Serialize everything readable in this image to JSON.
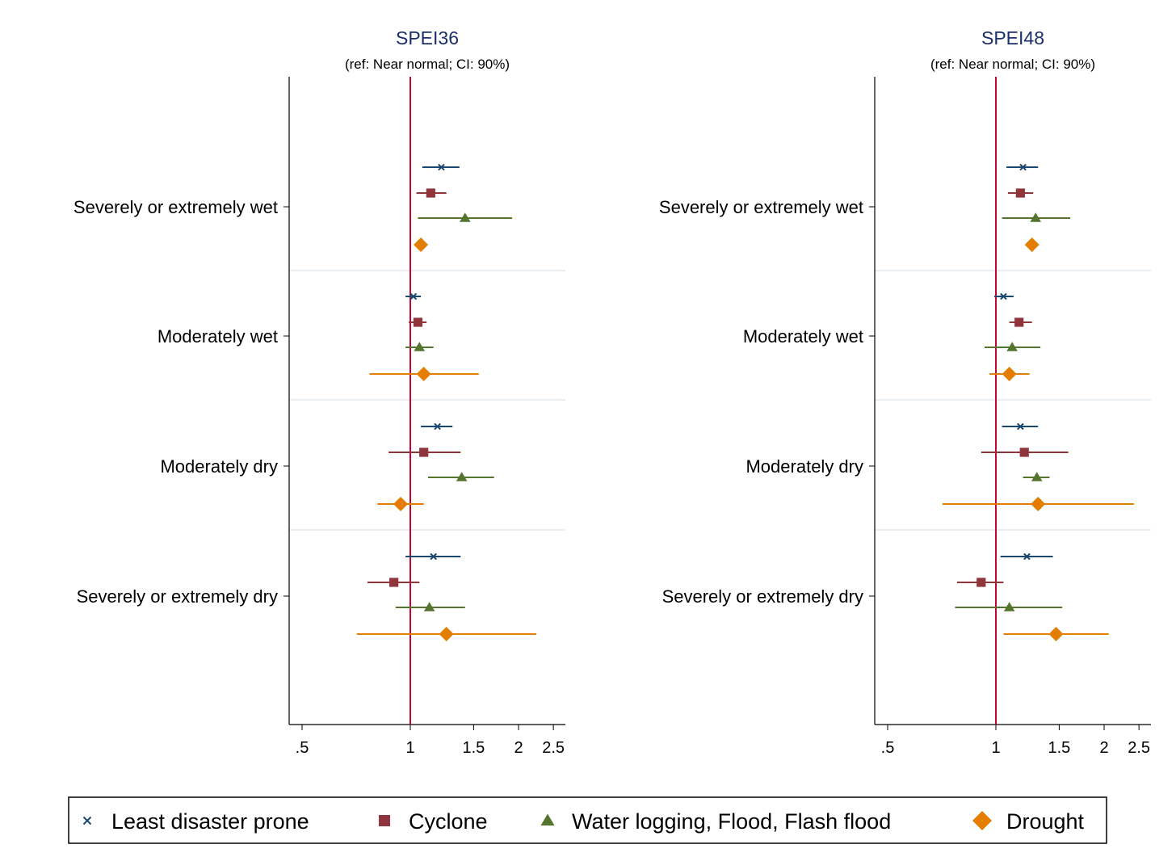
{
  "chart_data": {
    "type": "scatter",
    "subtype": "coefficient-plot-with-ci",
    "x_scale": "log",
    "xlim": [
      0.46,
      2.7
    ],
    "x_ticks": [
      0.5,
      1,
      1.5,
      2,
      2.5
    ],
    "x_tick_labels": [
      ".5",
      "1",
      "1.5",
      "2",
      "2.5"
    ],
    "reference_line": 1,
    "categories": [
      "Severely or extremely wet",
      "Moderately wet",
      "Moderately dry",
      "Severely or extremely dry"
    ],
    "legend": {
      "placement": "bottom",
      "entries": [
        "Least disaster prone",
        "Cyclone",
        "Water logging, Flood, Flash flood",
        "Drought"
      ]
    },
    "series_style": [
      {
        "marker": "x",
        "color": "#1a476f"
      },
      {
        "marker": "square",
        "color": "#90353b"
      },
      {
        "marker": "triangle",
        "color": "#55752f"
      },
      {
        "marker": "diamond",
        "color": "#e37e00"
      }
    ],
    "ref_color": "#c10534",
    "panels": [
      {
        "title": "SPEI36",
        "subtitle": "(ref: Near normal; CI: 90%)",
        "series": [
          {
            "name": "Least disaster prone",
            "values": [
              1.22,
              1.02,
              1.19,
              1.16
            ],
            "lo": [
              1.08,
              0.97,
              1.07,
              0.97
            ],
            "hi": [
              1.37,
              1.07,
              1.31,
              1.38
            ]
          },
          {
            "name": "Cyclone",
            "values": [
              1.14,
              1.05,
              1.09,
              0.9
            ],
            "lo": [
              1.04,
              0.99,
              0.87,
              0.76
            ],
            "hi": [
              1.26,
              1.11,
              1.38,
              1.06
            ]
          },
          {
            "name": "Water logging, Flood, Flash flood",
            "values": [
              1.42,
              1.06,
              1.39,
              1.13
            ],
            "lo": [
              1.05,
              0.97,
              1.12,
              0.91
            ],
            "hi": [
              1.92,
              1.16,
              1.71,
              1.42
            ]
          },
          {
            "name": "Drought",
            "values": [
              1.07,
              1.09,
              0.94,
              1.26
            ],
            "lo": [
              1.07,
              0.77,
              0.81,
              0.71
            ],
            "hi": [
              1.07,
              1.55,
              1.09,
              2.24
            ]
          }
        ]
      },
      {
        "title": "SPEI48",
        "subtitle": "(ref: Near normal; CI: 90%)",
        "series": [
          {
            "name": "Least disaster prone",
            "values": [
              1.19,
              1.05,
              1.17,
              1.22
            ],
            "lo": [
              1.07,
              0.99,
              1.04,
              1.03
            ],
            "hi": [
              1.31,
              1.12,
              1.31,
              1.44
            ]
          },
          {
            "name": "Cyclone",
            "values": [
              1.17,
              1.16,
              1.2,
              0.91
            ],
            "lo": [
              1.08,
              1.09,
              0.91,
              0.78
            ],
            "hi": [
              1.27,
              1.26,
              1.59,
              1.05
            ]
          },
          {
            "name": "Water logging, Flood, Flash flood",
            "values": [
              1.29,
              1.11,
              1.3,
              1.09
            ],
            "lo": [
              1.04,
              0.93,
              1.19,
              0.77
            ],
            "hi": [
              1.61,
              1.33,
              1.41,
              1.53
            ]
          },
          {
            "name": "Drought",
            "values": [
              1.26,
              1.09,
              1.31,
              1.47
            ],
            "lo": [
              1.26,
              0.96,
              0.71,
              1.05
            ],
            "hi": [
              1.26,
              1.24,
              2.42,
              2.06
            ]
          }
        ]
      }
    ]
  }
}
